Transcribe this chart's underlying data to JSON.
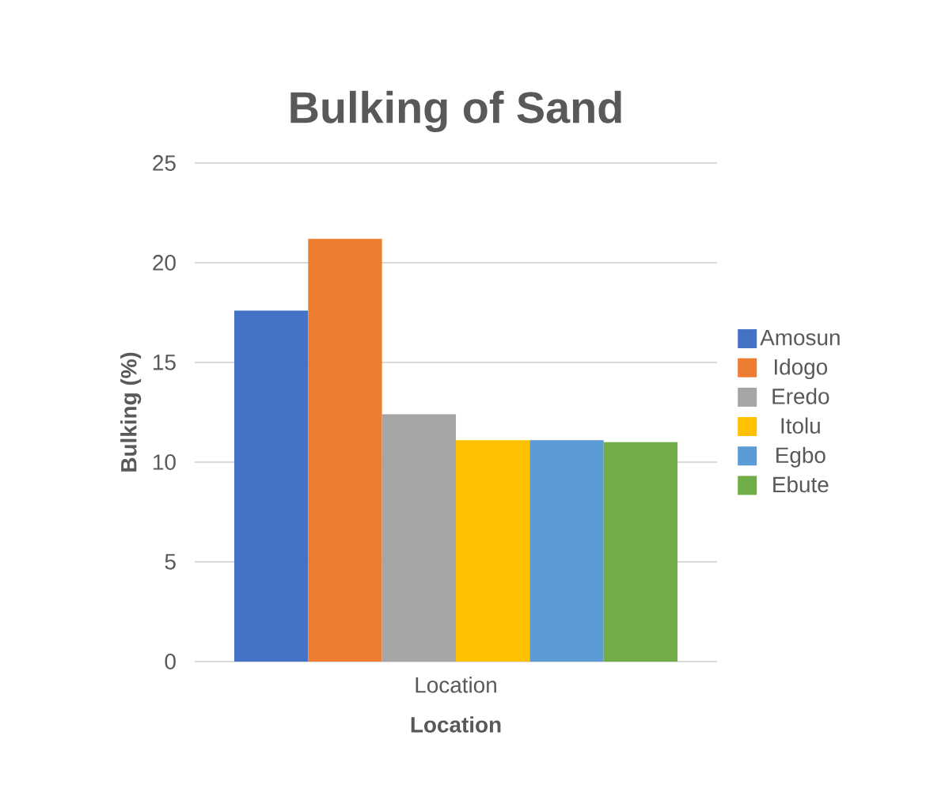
{
  "chart_data": {
    "type": "bar",
    "title": "Bulking of Sand",
    "xlabel": "Location",
    "ylabel": "Bulking (%)",
    "categories": [
      "Location"
    ],
    "series": [
      {
        "name": "Amosun",
        "color": "#4472c4",
        "values": [
          17.6
        ]
      },
      {
        "name": "Idogo",
        "color": "#ed7d31",
        "values": [
          21.2
        ]
      },
      {
        "name": "Eredo",
        "color": "#a5a5a5",
        "values": [
          12.4
        ]
      },
      {
        "name": "Itolu",
        "color": "#ffc000",
        "values": [
          11.1
        ]
      },
      {
        "name": "Egbo",
        "color": "#5b9bd5",
        "values": [
          11.1
        ]
      },
      {
        "name": "Ebute",
        "color": "#70ad47",
        "values": [
          11.0
        ]
      }
    ],
    "ylim": [
      0,
      25
    ],
    "yticks": [
      0,
      5,
      10,
      15,
      20,
      25
    ],
    "grid": "y",
    "legend": "right"
  }
}
